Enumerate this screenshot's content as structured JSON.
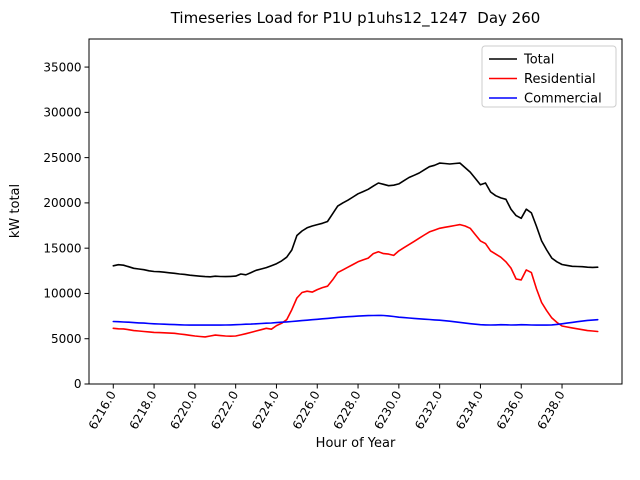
{
  "title": "Timeseries Load for P1U p1uhs12_1247  Day 260",
  "chart_data": {
    "type": "line",
    "title": "Timeseries Load for P1U p1uhs12_1247  Day 260",
    "xlabel": "Hour of Year",
    "ylabel": "kW total",
    "xlim": [
      6214.81,
      6240.94
    ],
    "ylim": [
      0,
      38100
    ],
    "grid": false,
    "legend_position": "upper right",
    "x_start": 6216.0,
    "x_step": 0.25,
    "n_points": 96,
    "xticks": {
      "values": [
        6216,
        6218,
        6220,
        6222,
        6224,
        6226,
        6228,
        6230,
        6232,
        6234,
        6236,
        6238
      ],
      "labels": [
        "6216.0",
        "6218.0",
        "6220.0",
        "6222.0",
        "6224.0",
        "6226.0",
        "6228.0",
        "6230.0",
        "6232.0",
        "6234.0",
        "6236.0",
        "6238.0"
      ]
    },
    "yticks": {
      "values": [
        0,
        5000,
        10000,
        15000,
        20000,
        25000,
        30000,
        35000
      ],
      "labels": [
        "0",
        "5000",
        "10000",
        "15000",
        "20000",
        "25000",
        "30000",
        "35000"
      ]
    },
    "series": [
      {
        "name": "Total",
        "color": "#000000",
        "values": [
          13050,
          13180,
          13120,
          12950,
          12780,
          12700,
          12620,
          12500,
          12420,
          12400,
          12350,
          12280,
          12220,
          12150,
          12100,
          12020,
          11960,
          11900,
          11860,
          11840,
          11900,
          11870,
          11860,
          11880,
          11920,
          12150,
          12060,
          12300,
          12560,
          12700,
          12860,
          13060,
          13280,
          13600,
          14000,
          14800,
          16400,
          16900,
          17250,
          17450,
          17600,
          17750,
          17950,
          18800,
          19650,
          20000,
          20300,
          20650,
          21000,
          21250,
          21500,
          21850,
          22200,
          22050,
          21900,
          21950,
          22100,
          22450,
          22800,
          23050,
          23300,
          23650,
          24000,
          24150,
          24400,
          24350,
          24300,
          24350,
          24400,
          23900,
          23400,
          22700,
          22000,
          22200,
          21200,
          20800,
          20550,
          20400,
          19300,
          18600,
          18300,
          19300,
          18900,
          17400,
          15800,
          14800,
          13900,
          13500,
          13200,
          13100,
          13000,
          12980,
          12950,
          12900,
          12880,
          12900
        ]
      },
      {
        "name": "Residential",
        "color": "#ff0000",
        "values": [
          6150,
          6100,
          6080,
          6000,
          5900,
          5850,
          5800,
          5750,
          5700,
          5680,
          5650,
          5620,
          5600,
          5520,
          5450,
          5380,
          5300,
          5250,
          5200,
          5300,
          5400,
          5350,
          5300,
          5280,
          5300,
          5420,
          5550,
          5700,
          5850,
          6000,
          6150,
          6050,
          6450,
          6700,
          7100,
          8200,
          9500,
          10100,
          10250,
          10150,
          10430,
          10650,
          10800,
          11500,
          12300,
          12600,
          12900,
          13200,
          13500,
          13700,
          13900,
          14400,
          14600,
          14400,
          14350,
          14200,
          14700,
          15050,
          15400,
          15750,
          16100,
          16450,
          16800,
          17000,
          17200,
          17300,
          17400,
          17500,
          17600,
          17450,
          17200,
          16500,
          15800,
          15500,
          14700,
          14350,
          14000,
          13500,
          12800,
          11600,
          11500,
          12600,
          12300,
          10500,
          9000,
          8100,
          7300,
          6800,
          6400,
          6300,
          6200,
          6100,
          6000,
          5900,
          5850,
          5800
        ]
      },
      {
        "name": "Commercial",
        "color": "#0000ff",
        "values": [
          6900,
          6880,
          6850,
          6820,
          6780,
          6750,
          6720,
          6680,
          6650,
          6630,
          6600,
          6580,
          6560,
          6540,
          6520,
          6510,
          6500,
          6500,
          6500,
          6500,
          6500,
          6510,
          6520,
          6530,
          6550,
          6570,
          6600,
          6620,
          6650,
          6680,
          6710,
          6740,
          6780,
          6820,
          6860,
          6900,
          6950,
          7000,
          7050,
          7100,
          7150,
          7200,
          7250,
          7300,
          7350,
          7390,
          7430,
          7470,
          7500,
          7530,
          7550,
          7570,
          7580,
          7560,
          7520,
          7450,
          7380,
          7330,
          7290,
          7240,
          7200,
          7160,
          7120,
          7080,
          7050,
          6990,
          6930,
          6870,
          6800,
          6730,
          6660,
          6600,
          6550,
          6530,
          6520,
          6530,
          6550,
          6540,
          6520,
          6530,
          6550,
          6540,
          6520,
          6510,
          6500,
          6510,
          6530,
          6580,
          6650,
          6720,
          6800,
          6880,
          6950,
          7020,
          7060,
          7100
        ]
      }
    ]
  },
  "legend": {
    "entries": [
      {
        "label": "Total",
        "color": "#000000"
      },
      {
        "label": "Residential",
        "color": "#ff0000"
      },
      {
        "label": "Commercial",
        "color": "#0000ff"
      }
    ]
  }
}
